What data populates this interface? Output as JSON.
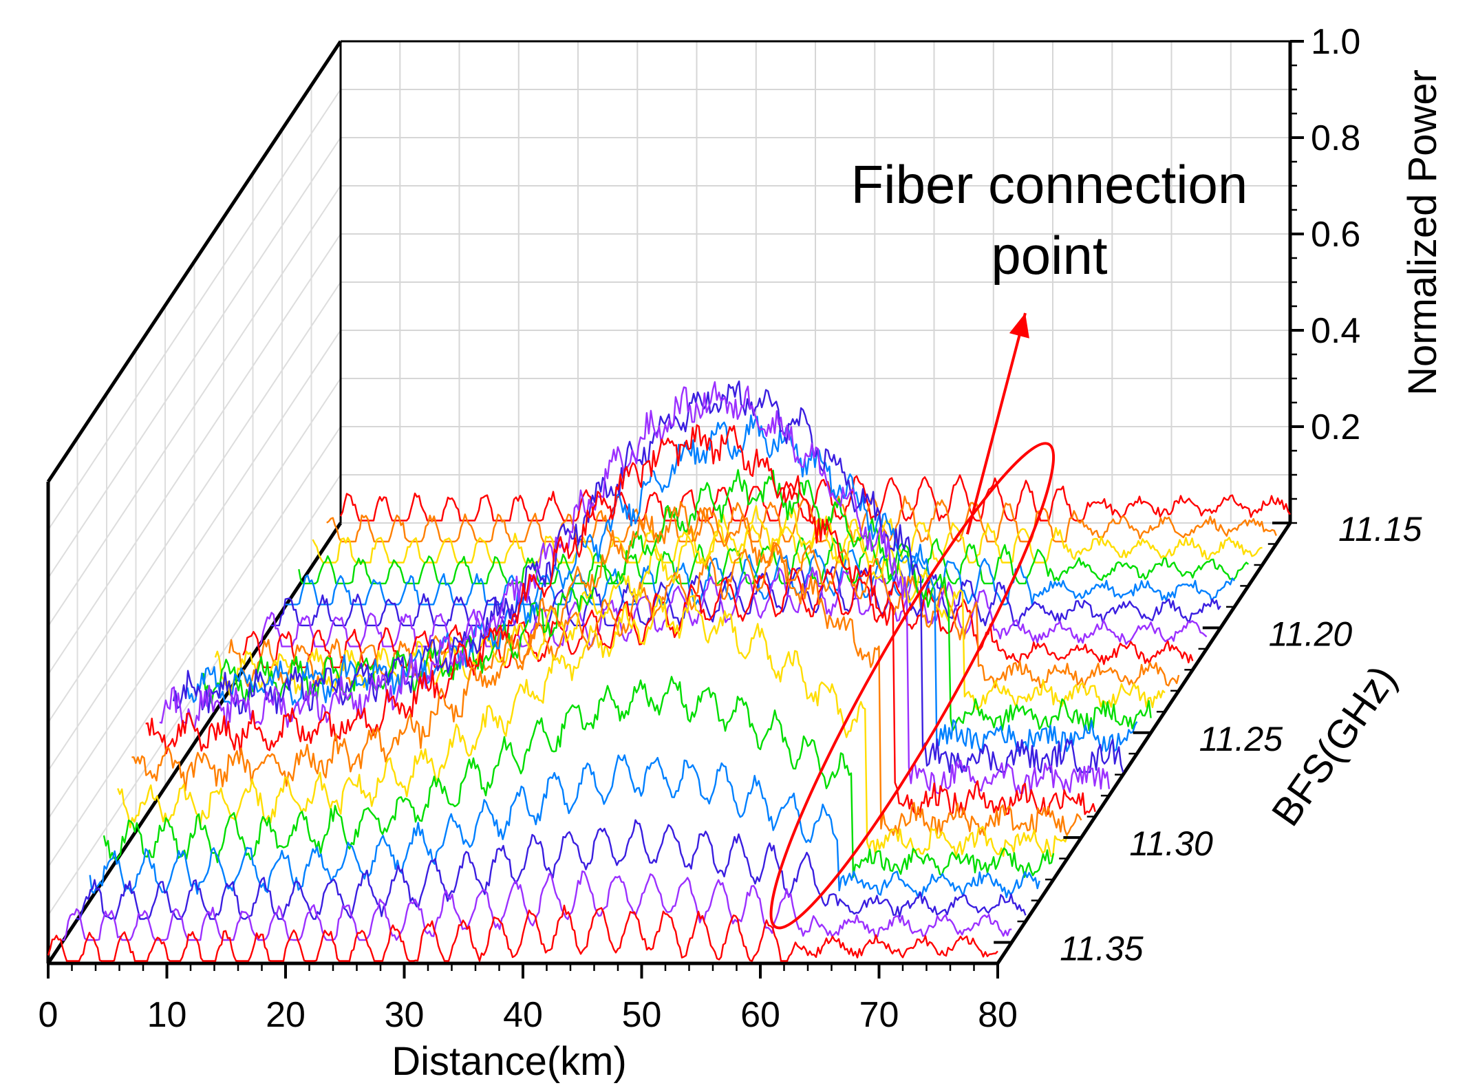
{
  "chart_data": {
    "type": "3d-waterfall",
    "title": "",
    "xlabel": "Distance(km)",
    "ylabel": "BFS(GHz)",
    "zlabel": "Normalized Power",
    "x_ticks": [
      "0",
      "10",
      "20",
      "30",
      "40",
      "50",
      "60",
      "70",
      "80"
    ],
    "y_ticks": [
      "11.15",
      "11.20",
      "11.25",
      "11.30",
      "11.35"
    ],
    "z_ticks": [
      "0.2",
      "0.4",
      "0.6",
      "0.8",
      "1.0"
    ],
    "xlim": [
      0,
      80
    ],
    "ylim": [
      11.15,
      11.36
    ],
    "zlim": [
      0,
      1.0
    ],
    "grid": true,
    "fiber_break_km": 63,
    "line_colors": [
      "#ff0000",
      "#ff7f00",
      "#ffdd00",
      "#00dd00",
      "#0080ff",
      "#3a1ee0",
      "#9b30ff"
    ],
    "series": [
      {
        "bfs": 11.15,
        "peak_power": 0.05
      },
      {
        "bfs": 11.16,
        "peak_power": 0.05
      },
      {
        "bfs": 11.17,
        "peak_power": 0.05
      },
      {
        "bfs": 11.18,
        "peak_power": 0.05
      },
      {
        "bfs": 11.19,
        "peak_power": 0.07
      },
      {
        "bfs": 11.2,
        "peak_power": 0.08
      },
      {
        "bfs": 11.21,
        "peak_power": 0.12
      },
      {
        "bfs": 11.22,
        "peak_power": 0.16
      },
      {
        "bfs": 11.23,
        "peak_power": 0.26
      },
      {
        "bfs": 11.24,
        "peak_power": 0.38
      },
      {
        "bfs": 11.25,
        "peak_power": 0.5
      },
      {
        "bfs": 11.26,
        "peak_power": 0.66
      },
      {
        "bfs": 11.27,
        "peak_power": 0.78
      },
      {
        "bfs": 11.28,
        "peak_power": 0.82
      },
      {
        "bfs": 11.29,
        "peak_power": 0.78
      },
      {
        "bfs": 11.3,
        "peak_power": 0.66
      },
      {
        "bfs": 11.31,
        "peak_power": 0.5
      },
      {
        "bfs": 11.32,
        "peak_power": 0.38
      },
      {
        "bfs": 11.33,
        "peak_power": 0.26
      },
      {
        "bfs": 11.34,
        "peak_power": 0.16
      },
      {
        "bfs": 11.35,
        "peak_power": 0.1
      },
      {
        "bfs": 11.36,
        "peak_power": 0.07
      }
    ],
    "annotation": {
      "line1": "Fiber connection",
      "line2": "point"
    }
  }
}
